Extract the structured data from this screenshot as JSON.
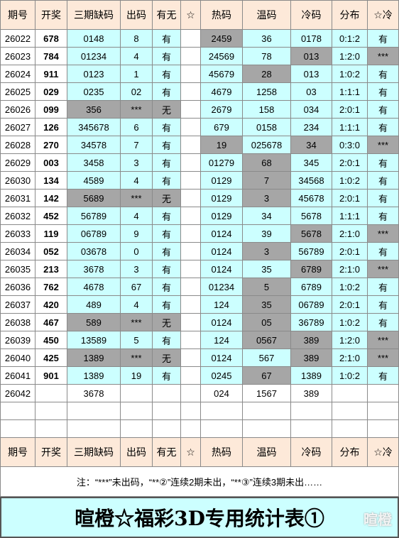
{
  "header": [
    "期号",
    "开奖",
    "三期缺码",
    "出码",
    "有无",
    "☆",
    "热码",
    "温码",
    "冷码",
    "分布",
    "☆冷"
  ],
  "rows": [
    [
      "26022",
      "678",
      "0148",
      "8",
      "有",
      null,
      "2459",
      "36",
      "0178",
      "0:1:2",
      "有"
    ],
    [
      "26023",
      "784",
      "01234",
      "4",
      "有",
      null,
      "24569",
      "78",
      "013",
      "1:2:0",
      "***"
    ],
    [
      "26024",
      "911",
      "0123",
      "1",
      "有",
      null,
      "45679",
      "28",
      "013",
      "1:0:2",
      "有"
    ],
    [
      "26025",
      "029",
      "0235",
      "02",
      "有",
      null,
      "4679",
      "1258",
      "03",
      "1:1:1",
      "有"
    ],
    [
      "26026",
      "099",
      "356",
      "***",
      "无",
      null,
      "2679",
      "158",
      "034",
      "2:0:1",
      "有"
    ],
    [
      "26027",
      "126",
      "345678",
      "6",
      "有",
      null,
      "679",
      "0158",
      "234",
      "1:1:1",
      "有"
    ],
    [
      "26028",
      "270",
      "34578",
      "7",
      "有",
      null,
      "19",
      "025678",
      "34",
      "0:3:0",
      "***"
    ],
    [
      "26029",
      "003",
      "3458",
      "3",
      "有",
      null,
      "01279",
      "68",
      "345",
      "2:0:1",
      "有"
    ],
    [
      "26030",
      "134",
      "4589",
      "4",
      "有",
      null,
      "0129",
      "7",
      "34568",
      "1:0:2",
      "有"
    ],
    [
      "26031",
      "142",
      "5689",
      "***",
      "无",
      null,
      "0129",
      "3",
      "45678",
      "2:0:1",
      "有"
    ],
    [
      "26032",
      "452",
      "56789",
      "4",
      "有",
      null,
      "0129",
      "34",
      "5678",
      "1:1:1",
      "有"
    ],
    [
      "26033",
      "119",
      "06789",
      "9",
      "有",
      null,
      "0124",
      "39",
      "5678",
      "2:1:0",
      "***"
    ],
    [
      "26034",
      "052",
      "03678",
      "0",
      "有",
      null,
      "0124",
      "3",
      "56789",
      "2:0:1",
      "有"
    ],
    [
      "26035",
      "213",
      "3678",
      "3",
      "有",
      null,
      "0124",
      "35",
      "6789",
      "2:1:0",
      "***"
    ],
    [
      "26036",
      "762",
      "4678",
      "67",
      "有",
      null,
      "01234",
      "5",
      "6789",
      "1:0:2",
      "有"
    ],
    [
      "26037",
      "420",
      "489",
      "4",
      "有",
      null,
      "124",
      "35",
      "06789",
      "2:0:1",
      "有"
    ],
    [
      "26038",
      "467",
      "589",
      "***",
      "无",
      null,
      "0124",
      "05",
      "36789",
      "1:0:2",
      "有"
    ],
    [
      "26039",
      "450",
      "13589",
      "5",
      "有",
      null,
      "124",
      "0567",
      "389",
      "1:2:0",
      "***"
    ],
    [
      "26040",
      "425",
      "1389",
      "***",
      "无",
      null,
      "0124",
      "567",
      "389",
      "2:1:0",
      "***"
    ],
    [
      "26041",
      "901",
      "1389",
      "19",
      "有",
      null,
      "0245",
      "67",
      "1389",
      "1:0:2",
      "有"
    ],
    [
      "26042",
      null,
      "3678",
      null,
      null,
      null,
      "024",
      "1567",
      "389",
      null,
      null
    ]
  ],
  "footer_header": [
    "期号",
    "开奖",
    "三期缺码",
    "出码",
    "有无",
    "☆",
    "热码",
    "温码",
    "冷码",
    "分布",
    "☆冷"
  ],
  "note": "注：“***”未出码，“**②”连续2期未出，“**③”连续3期未出……",
  "title": "暄橙☆福彩3D专用统计表①",
  "watermark": "暄橙"
}
